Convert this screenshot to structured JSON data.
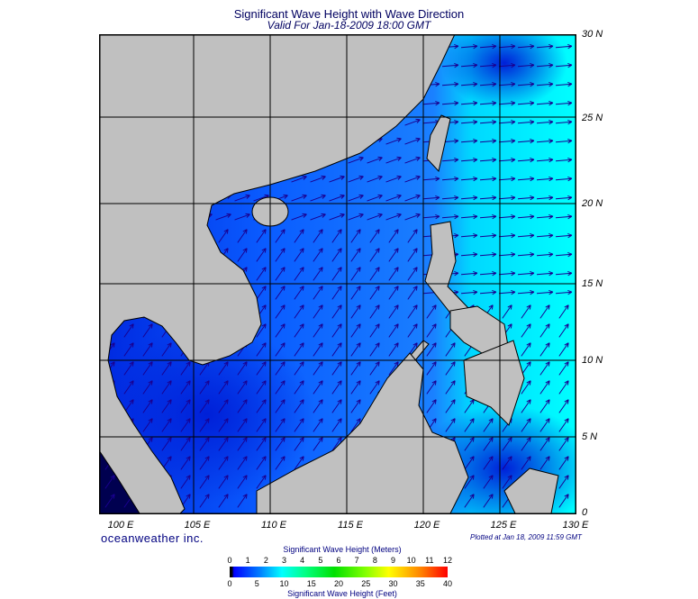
{
  "title": "Significant Wave Height with Wave Direction",
  "subtitle": "Valid For Jan-18-2009 18:00 GMT",
  "lat_labels": [
    "30 N",
    "25 N",
    "20 N",
    "15 N",
    "10 N",
    "5 N",
    "0"
  ],
  "lon_labels": [
    "100 E",
    "105 E",
    "110 E",
    "115 E",
    "120 E",
    "125 E",
    "130 E"
  ],
  "brand": "oceanweather inc.",
  "plotted": "Plotted at Jan 18, 2009 11:59 GMT",
  "colorbar": {
    "meters_label": "Significant Wave Height (Meters)",
    "feet_label": "Significant Wave Height (Feet)",
    "meters_ticks": [
      "0",
      "1",
      "2",
      "3",
      "4",
      "5",
      "6",
      "7",
      "8",
      "9",
      "10",
      "11",
      "12"
    ],
    "feet_ticks": [
      "0",
      "5",
      "10",
      "15",
      "20",
      "25",
      "30",
      "35",
      "40"
    ]
  },
  "colors": {
    "land": "#c0c0c0",
    "sea_low": "#0030e8",
    "sea_high": "#00ffff"
  }
}
